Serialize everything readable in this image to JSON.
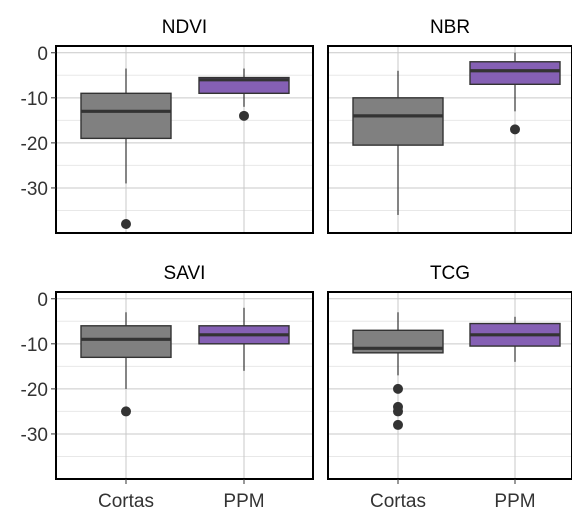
{
  "chart_data": [
    {
      "type": "box",
      "title": "NDVI",
      "categories": [
        "Cortas",
        "PPM"
      ],
      "y_ticks": [
        "0",
        "-10",
        "-20",
        "-30"
      ],
      "ylim": [
        -40,
        1.5
      ],
      "boxes": [
        {
          "category": "Cortas",
          "whisker_low": -29,
          "q1": -19,
          "median": -13,
          "q3": -9,
          "whisker_high": -3.5,
          "outliers": [
            -38
          ]
        },
        {
          "category": "PPM",
          "whisker_low": -12,
          "q1": -9,
          "median": -6,
          "q3": -5.5,
          "whisker_high": -3.5,
          "outliers": [
            -14
          ]
        }
      ]
    },
    {
      "type": "box",
      "title": "NBR",
      "categories": [
        "Cortas",
        "PPM"
      ],
      "y_ticks": [
        "0",
        "-10",
        "-20",
        "-30"
      ],
      "ylim": [
        -40,
        1.5
      ],
      "boxes": [
        {
          "category": "Cortas",
          "whisker_low": -36,
          "q1": -20.5,
          "median": -14,
          "q3": -10,
          "whisker_high": -4,
          "outliers": []
        },
        {
          "category": "PPM",
          "whisker_low": -13,
          "q1": -7,
          "median": -4,
          "q3": -2,
          "whisker_high": 0,
          "outliers": [
            -17
          ]
        }
      ]
    },
    {
      "type": "box",
      "title": "SAVI",
      "categories": [
        "Cortas",
        "PPM"
      ],
      "y_ticks": [
        "0",
        "-10",
        "-20",
        "-30"
      ],
      "ylim": [
        -40,
        1.5
      ],
      "boxes": [
        {
          "category": "Cortas",
          "whisker_low": -20,
          "q1": -13,
          "median": -9,
          "q3": -6,
          "whisker_high": -3,
          "outliers": [
            -25
          ]
        },
        {
          "category": "PPM",
          "whisker_low": -16,
          "q1": -10,
          "median": -8,
          "q3": -6,
          "whisker_high": -2,
          "outliers": []
        }
      ]
    },
    {
      "type": "box",
      "title": "TCG",
      "categories": [
        "Cortas",
        "PPM"
      ],
      "y_ticks": [
        "0",
        "-10",
        "-20",
        "-30"
      ],
      "ylim": [
        -40,
        1.5
      ],
      "boxes": [
        {
          "category": "Cortas",
          "whisker_low": -17,
          "q1": -12,
          "median": -11,
          "q3": -7,
          "whisker_high": -3,
          "outliers": [
            -20,
            -24,
            -25,
            -28
          ]
        },
        {
          "category": "PPM",
          "whisker_low": -14,
          "q1": -10.5,
          "median": -8,
          "q3": -5.5,
          "whisker_high": -4,
          "outliers": []
        }
      ]
    }
  ],
  "colors": {
    "cortas_fill": "#808080",
    "ppm_fill": "#8560B4",
    "box_line": "#333333",
    "grid_major": "#c9c9c9",
    "grid_minor": "#e8e8e8",
    "panel_border": "#000000",
    "text": "#333333"
  }
}
